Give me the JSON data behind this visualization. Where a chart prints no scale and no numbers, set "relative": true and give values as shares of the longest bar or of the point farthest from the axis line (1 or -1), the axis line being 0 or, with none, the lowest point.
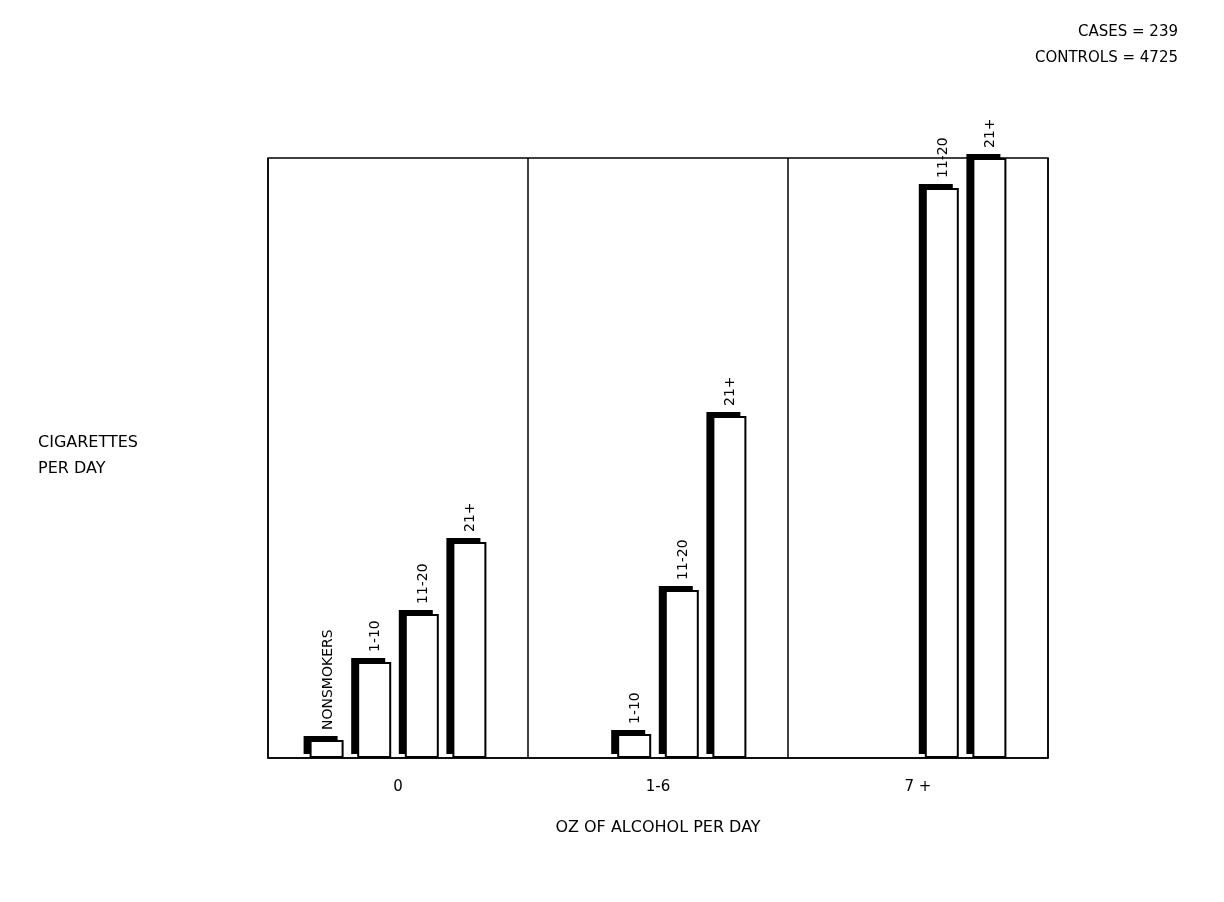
{
  "chart_data": {
    "type": "bar",
    "relative": true,
    "xlabel": "OZ OF ALCOHOL PER DAY",
    "categories": [
      "0",
      "1-6",
      "7 +"
    ],
    "grid": "x",
    "legend": false,
    "series": [
      {
        "name": "NONSMOKERS",
        "color": "#ffffff",
        "values": [
          0.03,
          null,
          null
        ]
      },
      {
        "name": "1-10",
        "color": "#ffffff",
        "values": [
          0.16,
          0.04,
          null
        ]
      },
      {
        "name": "11-20",
        "color": "#ffffff",
        "values": [
          0.24,
          0.28,
          0.95
        ]
      },
      {
        "name": "21+",
        "color": "#ffffff",
        "values": [
          0.36,
          0.57,
          1
        ]
      }
    ],
    "annotations": [
      "CIGARETTES PER DAY",
      "CASES = 239",
      "CONTROLS = 4725"
    ]
  }
}
